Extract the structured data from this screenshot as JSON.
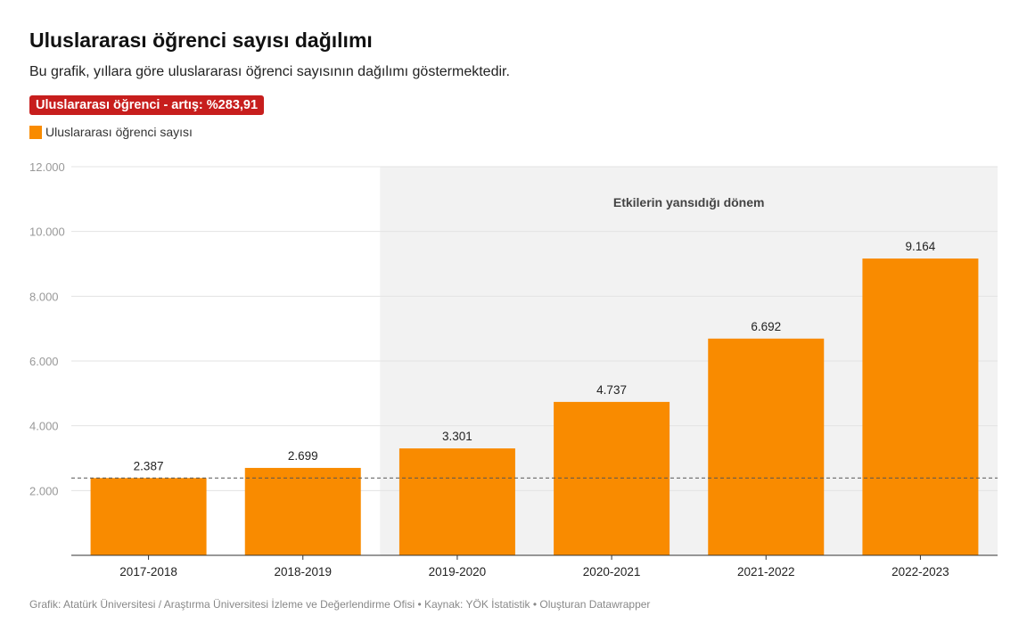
{
  "title": "Uluslararası öğrenci sayısı dağılımı",
  "subtitle": "Bu grafik, yıllara göre uluslararası öğrenci sayısının dağılımı göstermektedir.",
  "badge": "Uluslararası öğrenci - artış: %283,91",
  "footer": "Grafik: Atatürk Üniversitesi / Araştırma Üniversitesi İzleme ve Değerlendirme Ofisi • Kaynak: YÖK İstatistik • Oluşturan Datawrapper",
  "colors": {
    "bar": "#f98b00",
    "badge": "#c71e1d",
    "shade": "#f2f2f2"
  },
  "chart_data": {
    "type": "bar",
    "title": "Uluslararası öğrenci sayısı dağılımı",
    "xlabel": "",
    "ylabel": "",
    "ylim": [
      0,
      12000
    ],
    "yticks": [
      2000,
      4000,
      6000,
      8000,
      10000,
      12000
    ],
    "ytick_labels": [
      "2.000",
      "4.000",
      "6.000",
      "8.000",
      "10.000",
      "12.000"
    ],
    "grid": true,
    "legend": {
      "position": "top-left",
      "entries": [
        "Uluslararası öğrenci sayısı"
      ]
    },
    "categories": [
      "2017-2018",
      "2018-2019",
      "2019-2020",
      "2020-2021",
      "2021-2022",
      "2022-2023"
    ],
    "series": [
      {
        "name": "Uluslararası öğrenci sayısı",
        "values": [
          2387,
          2699,
          3301,
          4737,
          6692,
          9164
        ],
        "labels": [
          "2.387",
          "2.699",
          "3.301",
          "4.737",
          "6.692",
          "9.164"
        ]
      }
    ],
    "reference_line": {
      "value": 2387,
      "style": "dashed"
    },
    "highlight_range": {
      "from": "2019-2020",
      "to": "2022-2023",
      "label": "Etkilerin yansıdığı dönem"
    }
  }
}
